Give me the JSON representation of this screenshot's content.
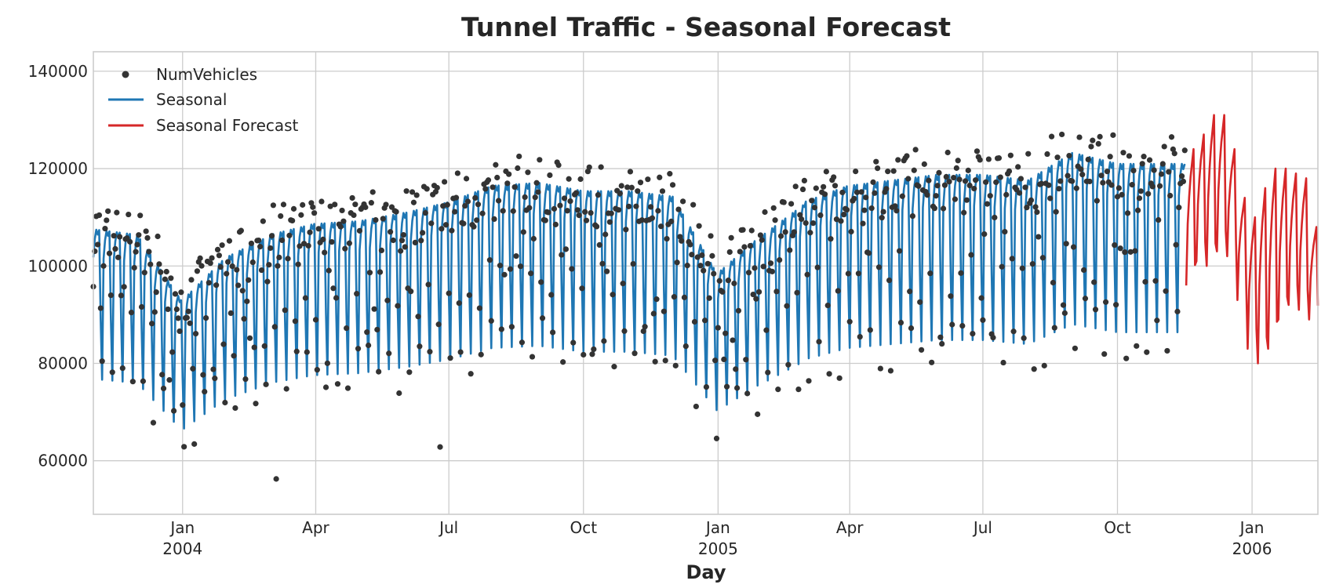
{
  "chart_data": {
    "type": "line",
    "title": "Tunnel Traffic - Seasonal Forecast",
    "xlabel": "Day",
    "ylabel": "",
    "x_range": [
      "2003-11-01",
      "2006-02-15"
    ],
    "ylim": [
      49000,
      144000
    ],
    "y_ticks": [
      60000,
      80000,
      100000,
      120000,
      140000
    ],
    "y_tick_labels": [
      "60000",
      "80000",
      "100000",
      "120000",
      "140000"
    ],
    "x_ticks": [
      {
        "date": "2004-01-01",
        "month": "Jan",
        "year": "2004"
      },
      {
        "date": "2004-04-01",
        "month": "Apr",
        "year": ""
      },
      {
        "date": "2004-07-01",
        "month": "Jul",
        "year": ""
      },
      {
        "date": "2004-10-01",
        "month": "Oct",
        "year": ""
      },
      {
        "date": "2005-01-01",
        "month": "Jan",
        "year": "2005"
      },
      {
        "date": "2005-04-01",
        "month": "Apr",
        "year": ""
      },
      {
        "date": "2005-07-01",
        "month": "Jul",
        "year": ""
      },
      {
        "date": "2005-10-01",
        "month": "Oct",
        "year": ""
      },
      {
        "date": "2006-01-01",
        "month": "Jan",
        "year": "2006"
      }
    ],
    "grid": true,
    "legend_position": "top-left",
    "legend": [
      {
        "label": "NumVehicles",
        "marker": "dot",
        "color": "#333333"
      },
      {
        "label": "Seasonal",
        "marker": "line",
        "color": "#1f77b4"
      },
      {
        "label": "Seasonal Forecast",
        "marker": "line",
        "color": "#d62728"
      }
    ],
    "series": [
      {
        "name": "NumVehicles",
        "style": "points",
        "color": "#333333",
        "x_start": "2003-11-01",
        "x_step_days": 1,
        "count": 747,
        "note_weekly_profile": [
          1.06,
          1.1,
          1.12,
          1.11,
          1.12,
          0.93,
          0.8
        ],
        "monthly_level": [
          {
            "month": "2003-11",
            "level": 96000
          },
          {
            "month": "2003-12",
            "level": 95000
          },
          {
            "month": "2004-01",
            "level": 83000
          },
          {
            "month": "2004-02",
            "level": 91000
          },
          {
            "month": "2004-03",
            "level": 95000
          },
          {
            "month": "2004-04",
            "level": 97000
          },
          {
            "month": "2004-05",
            "level": 97500
          },
          {
            "month": "2004-06",
            "level": 99000
          },
          {
            "month": "2004-07",
            "level": 101000
          },
          {
            "month": "2004-08",
            "level": 104000
          },
          {
            "month": "2004-09",
            "level": 104500
          },
          {
            "month": "2004-10",
            "level": 103000
          },
          {
            "month": "2004-11",
            "level": 103000
          },
          {
            "month": "2004-12",
            "level": 102000
          },
          {
            "month": "2005-01",
            "level": 88000
          },
          {
            "month": "2005-02",
            "level": 95000
          },
          {
            "month": "2005-03",
            "level": 101000
          },
          {
            "month": "2005-04",
            "level": 104000
          },
          {
            "month": "2005-05",
            "level": 105000
          },
          {
            "month": "2005-06",
            "level": 106000
          },
          {
            "month": "2005-07",
            "level": 106000
          },
          {
            "month": "2005-08",
            "level": 105000
          },
          {
            "month": "2005-09",
            "level": 110000
          },
          {
            "month": "2005-10",
            "level": 108000
          },
          {
            "month": "2005-11",
            "level": 108000
          }
        ]
      },
      {
        "name": "Seasonal",
        "style": "line",
        "color": "#1f77b4",
        "x_start": "2003-11-01",
        "x_end": "2005-11-16"
      },
      {
        "name": "Seasonal Forecast",
        "style": "line",
        "color": "#d62728",
        "x_start": "2005-11-17",
        "x_end": "2006-02-15",
        "weekly_min": [
          96000,
          101000,
          100000,
          103000,
          102000,
          93000,
          83000,
          80000,
          83000,
          89000,
          92000,
          91000,
          89000
        ],
        "weekly_max": [
          124000,
          127000,
          131000,
          131000,
          124000,
          114000,
          110000,
          116000,
          120000,
          120000,
          119000,
          118000,
          108000
        ]
      }
    ]
  }
}
